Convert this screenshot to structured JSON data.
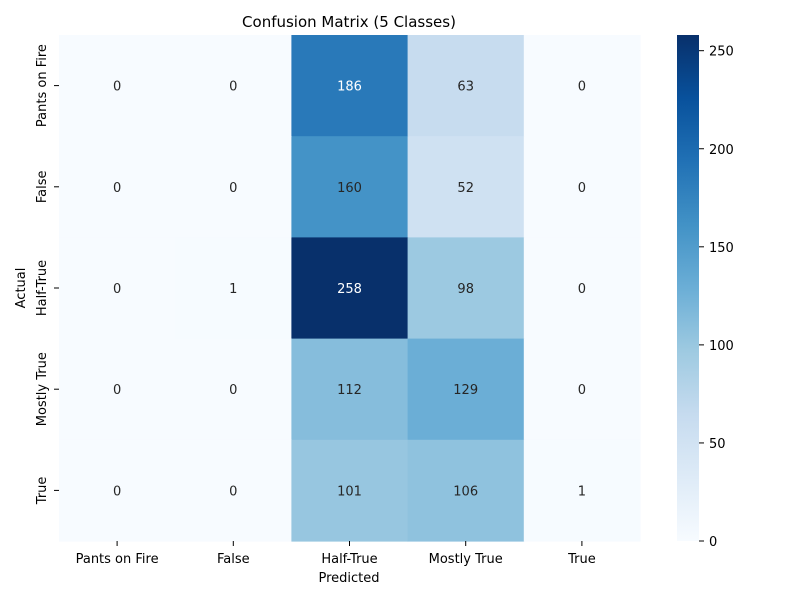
{
  "chart_data": {
    "type": "heatmap",
    "title": "Confusion Matrix (5 Classes)",
    "xlabel": "Predicted",
    "ylabel": "Actual",
    "x_categories": [
      "Pants on Fire",
      "False",
      "Half-True",
      "Mostly True",
      "True"
    ],
    "y_categories": [
      "Pants on Fire",
      "False",
      "Half-True",
      "Mostly True",
      "True"
    ],
    "values": [
      [
        0,
        0,
        186,
        63,
        0
      ],
      [
        0,
        0,
        160,
        52,
        0
      ],
      [
        0,
        1,
        258,
        98,
        0
      ],
      [
        0,
        0,
        112,
        129,
        0
      ],
      [
        0,
        0,
        101,
        106,
        1
      ]
    ],
    "colorbar": {
      "min": 0,
      "max": 258,
      "ticks": [
        "0",
        "50",
        "100",
        "150",
        "200",
        "250"
      ],
      "tick_values": [
        0,
        50,
        100,
        150,
        200,
        250
      ]
    },
    "colormap": "Blues",
    "colors": {
      "light_text": "#ffffff",
      "dark_text": "#262626"
    }
  }
}
